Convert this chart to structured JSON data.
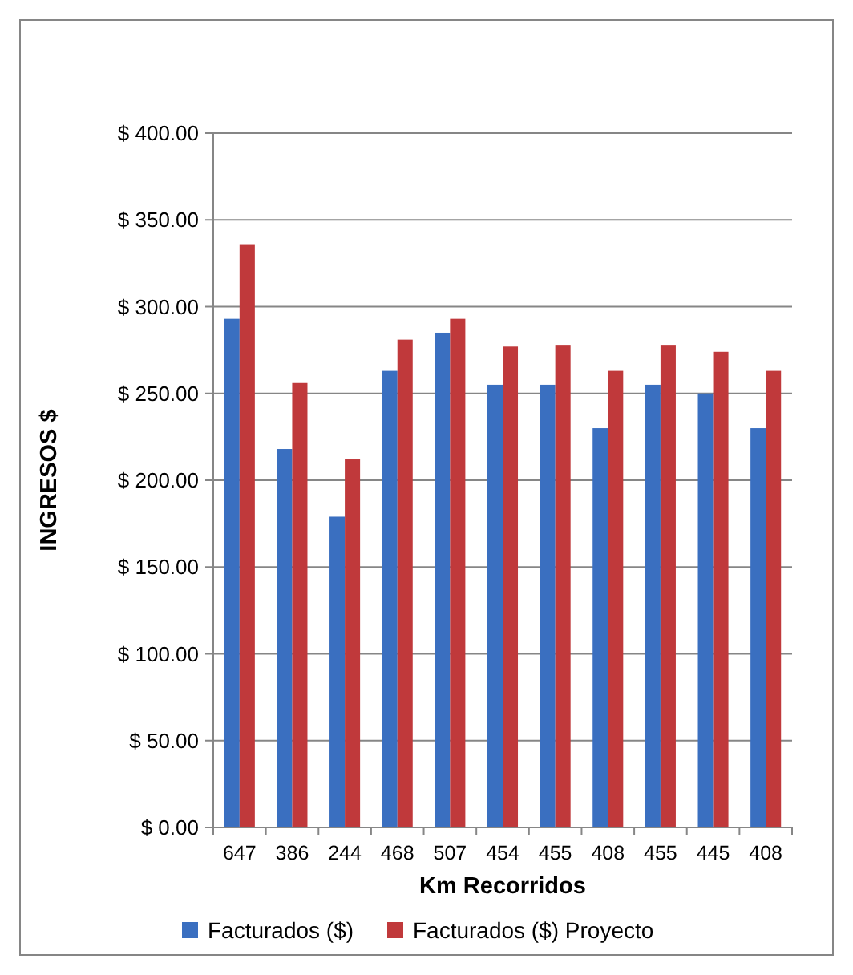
{
  "chart_data": {
    "type": "bar",
    "xlabel": "Km Recorridos",
    "ylabel": "INGRESOS $",
    "categories": [
      "647",
      "386",
      "244",
      "468",
      "507",
      "454",
      "455",
      "408",
      "455",
      "445",
      "408"
    ],
    "series": [
      {
        "name": "Facturados ($)",
        "color": "#3a6fc0",
        "values": [
          293,
          218,
          179,
          263,
          285,
          255,
          255,
          230,
          255,
          250,
          230
        ]
      },
      {
        "name": "Facturados ($) Proyecto",
        "color": "#c0393b",
        "values": [
          336,
          256,
          212,
          281,
          293,
          277,
          278,
          263,
          278,
          274,
          263
        ]
      }
    ],
    "ylim": [
      0,
      400
    ],
    "yticks": [
      {
        "value": 0,
        "label": "$ 0.00"
      },
      {
        "value": 50,
        "label": "$ 50.00"
      },
      {
        "value": 100,
        "label": "$ 100.00"
      },
      {
        "value": 150,
        "label": "$ 150.00"
      },
      {
        "value": 200,
        "label": "$ 200.00"
      },
      {
        "value": 250,
        "label": "$ 250.00"
      },
      {
        "value": 300,
        "label": "$ 300.00"
      },
      {
        "value": 350,
        "label": "$ 350.00"
      },
      {
        "value": 400,
        "label": "$ 400.00"
      }
    ],
    "grid": "y",
    "legend": "bottom"
  }
}
